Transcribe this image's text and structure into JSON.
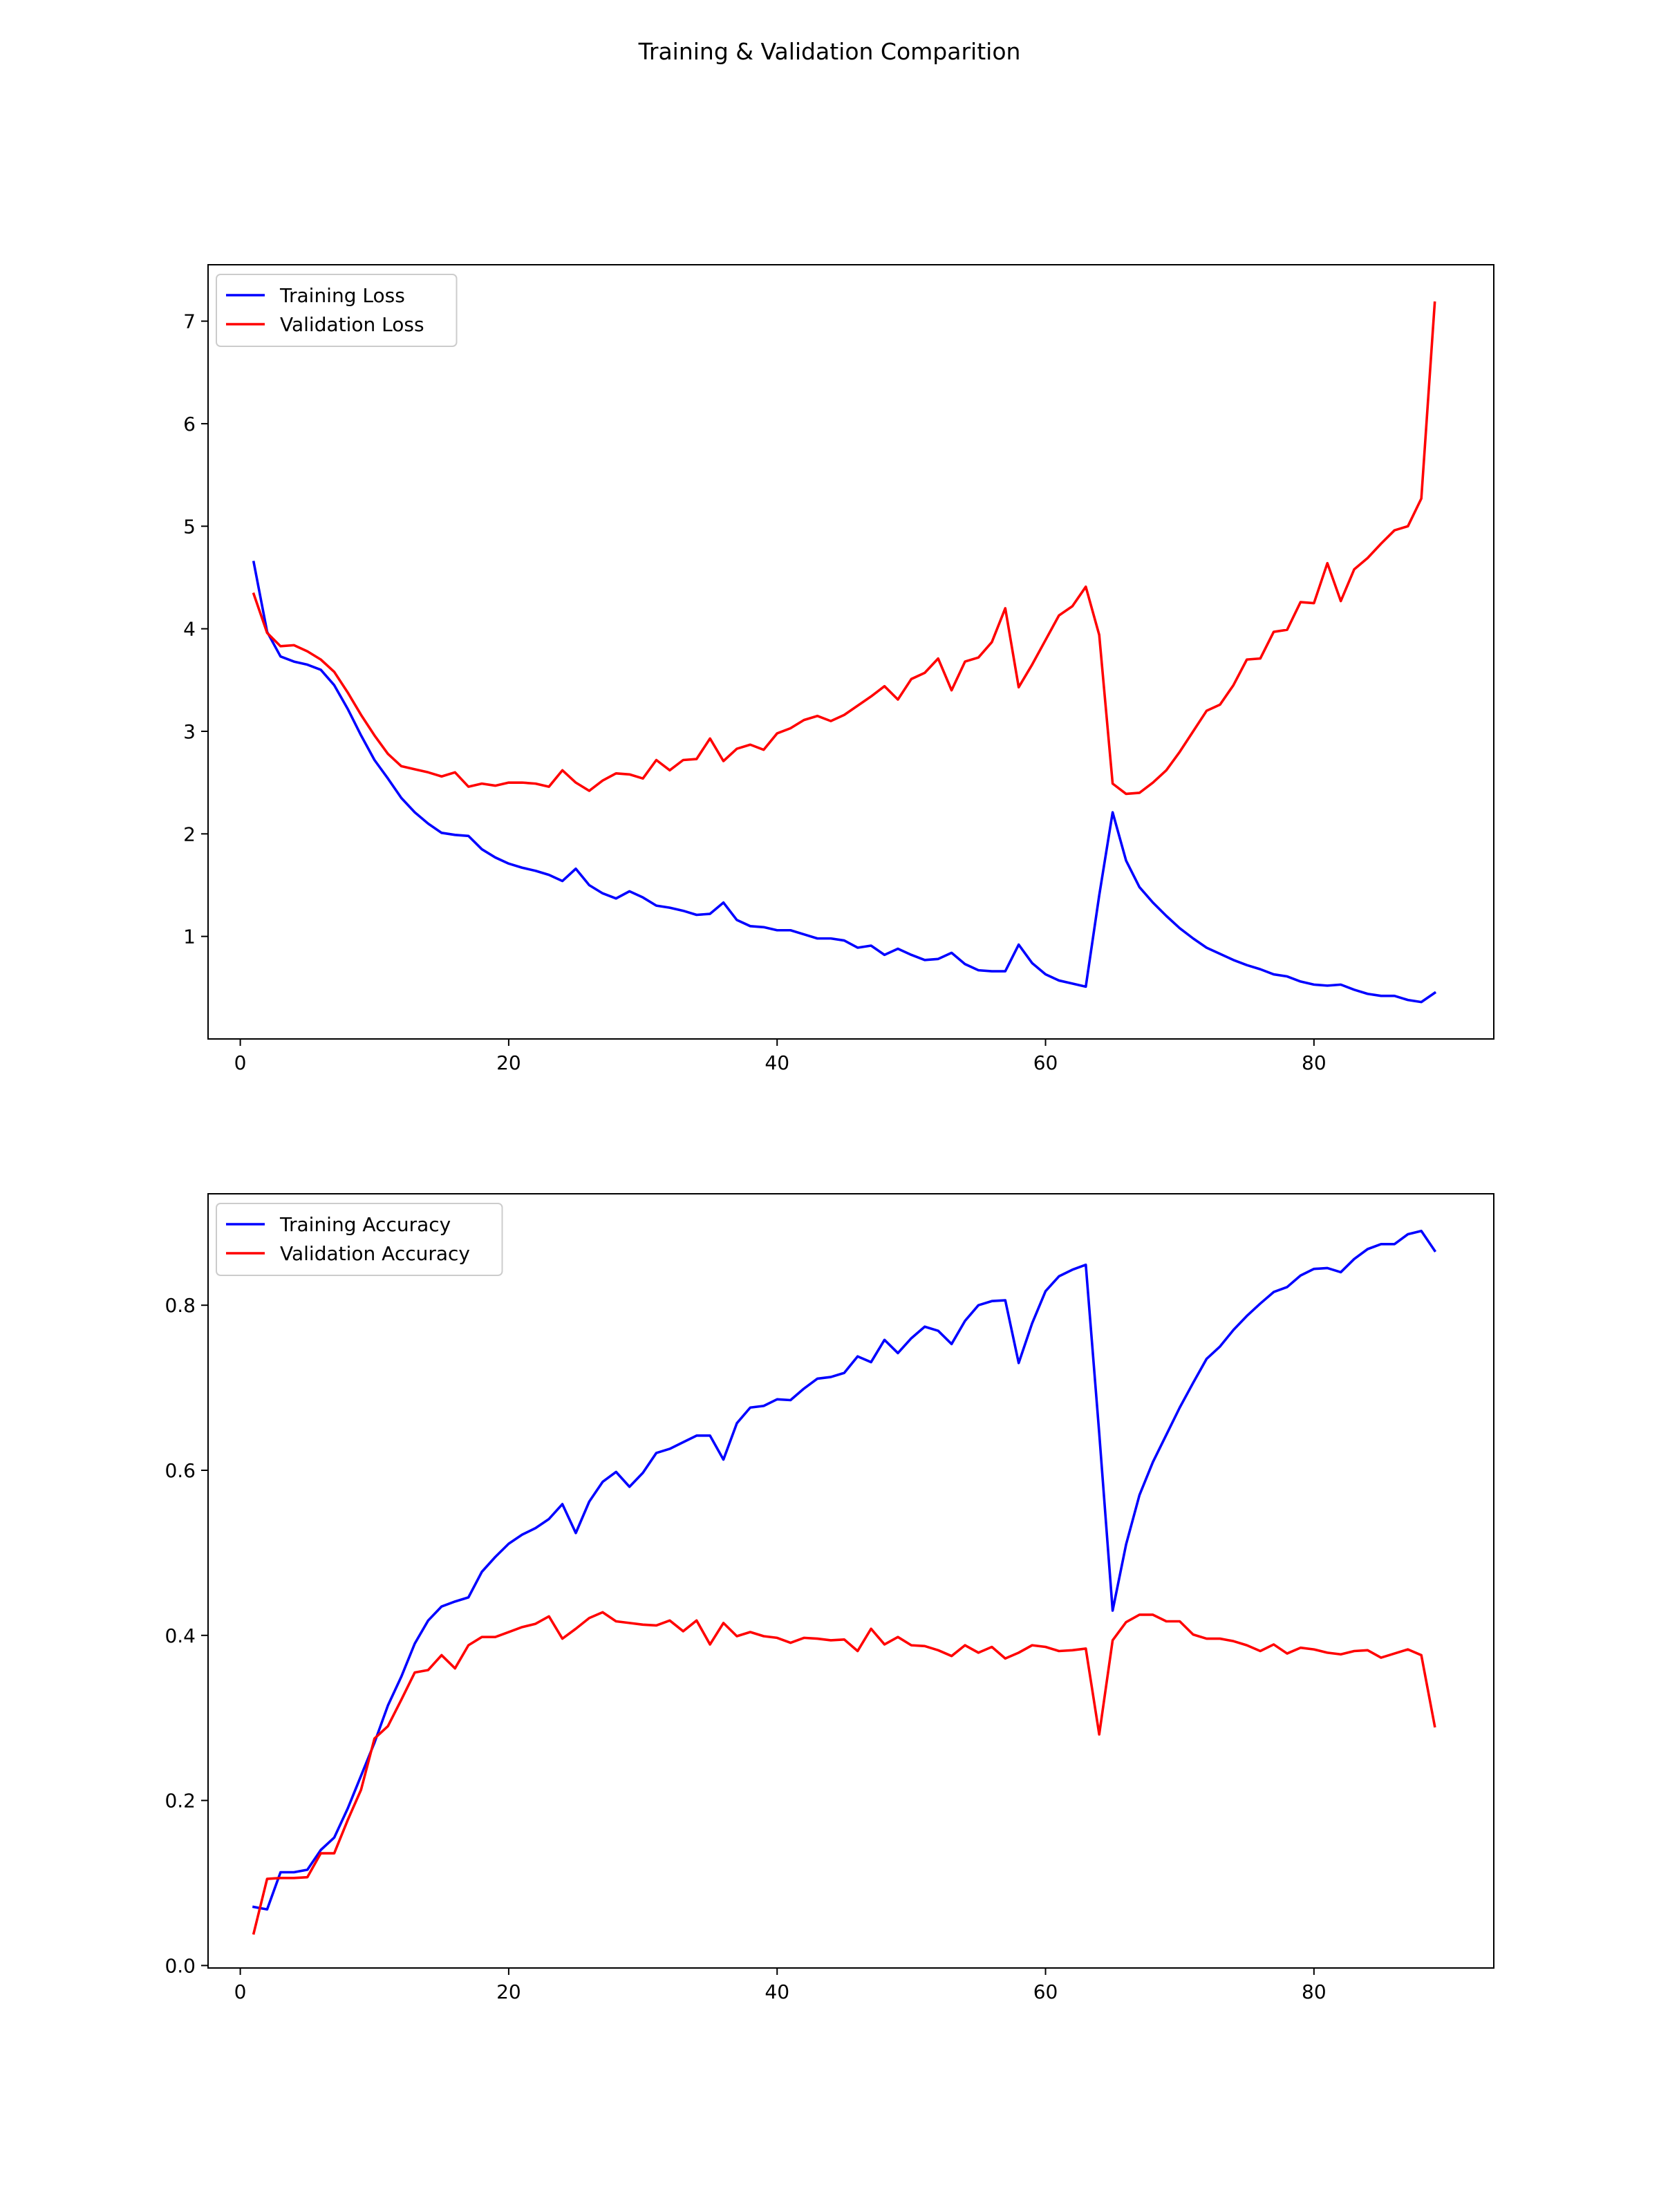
{
  "figure": {
    "title": "Training & Validation Comparition"
  },
  "chart_data": [
    {
      "type": "line",
      "title": "",
      "xlabel": "",
      "ylabel": "",
      "xlim": [
        -2.4,
        93.4
      ],
      "ylim": [
        0.0,
        7.55
      ],
      "xticks": [
        0,
        20,
        40,
        60,
        80
      ],
      "yticks": [
        1,
        2,
        3,
        4,
        5,
        6,
        7
      ],
      "ytick_decimals": 0,
      "grid": false,
      "legend_position": "top-left",
      "series": [
        {
          "name": "Training Loss",
          "color": "#0000ff",
          "values": [
            4.65,
            3.97,
            3.73,
            3.68,
            3.65,
            3.6,
            3.45,
            3.22,
            2.96,
            2.72,
            2.54,
            2.35,
            2.21,
            2.1,
            2.01,
            1.99,
            1.98,
            1.85,
            1.77,
            1.71,
            1.67,
            1.64,
            1.6,
            1.54,
            1.66,
            1.5,
            1.42,
            1.37,
            1.44,
            1.38,
            1.3,
            1.28,
            1.25,
            1.21,
            1.22,
            1.33,
            1.16,
            1.1,
            1.09,
            1.06,
            1.06,
            1.02,
            0.98,
            0.98,
            0.96,
            0.89,
            0.91,
            0.82,
            0.88,
            0.82,
            0.77,
            0.78,
            0.84,
            0.73,
            0.67,
            0.66,
            0.66,
            0.92,
            0.74,
            0.63,
            0.57,
            0.54,
            0.51,
            1.4,
            2.21,
            1.74,
            1.48,
            1.33,
            1.2,
            1.08,
            0.98,
            0.89,
            0.83,
            0.77,
            0.72,
            0.68,
            0.63,
            0.61,
            0.56,
            0.53,
            0.52,
            0.53,
            0.48,
            0.44,
            0.42,
            0.42,
            0.38,
            0.36,
            0.45
          ]
        },
        {
          "name": "Validation Loss",
          "color": "#ff0000",
          "values": [
            4.34,
            3.96,
            3.83,
            3.84,
            3.78,
            3.7,
            3.58,
            3.38,
            3.16,
            2.96,
            2.78,
            2.66,
            2.63,
            2.6,
            2.56,
            2.6,
            2.46,
            2.49,
            2.47,
            2.5,
            2.5,
            2.49,
            2.46,
            2.62,
            2.5,
            2.42,
            2.52,
            2.59,
            2.58,
            2.54,
            2.72,
            2.62,
            2.72,
            2.73,
            2.93,
            2.71,
            2.83,
            2.87,
            2.82,
            2.98,
            3.03,
            3.11,
            3.15,
            3.1,
            3.16,
            3.25,
            3.34,
            3.44,
            3.31,
            3.51,
            3.57,
            3.71,
            3.4,
            3.68,
            3.72,
            3.87,
            4.2,
            3.43,
            3.65,
            3.89,
            4.13,
            4.22,
            4.41,
            3.94,
            2.49,
            2.39,
            2.4,
            2.5,
            2.62,
            2.8,
            3.0,
            3.2,
            3.26,
            3.45,
            3.7,
            3.71,
            3.97,
            3.99,
            4.26,
            4.25,
            4.64,
            4.27,
            4.58,
            4.69,
            4.83,
            4.96,
            5.0,
            5.27,
            7.18
          ]
        }
      ]
    },
    {
      "type": "line",
      "title": "",
      "xlabel": "",
      "ylabel": "",
      "xlim": [
        -2.4,
        93.4
      ],
      "ylim": [
        -0.003,
        0.935
      ],
      "xticks": [
        0,
        20,
        40,
        60,
        80
      ],
      "yticks": [
        0.0,
        0.2,
        0.4,
        0.6,
        0.8
      ],
      "ytick_decimals": 1,
      "grid": false,
      "legend_position": "top-left",
      "series": [
        {
          "name": "Training Accuracy",
          "color": "#0000ff",
          "values": [
            0.071,
            0.068,
            0.113,
            0.113,
            0.116,
            0.14,
            0.155,
            0.19,
            0.23,
            0.27,
            0.315,
            0.35,
            0.39,
            0.418,
            0.435,
            0.441,
            0.446,
            0.477,
            0.495,
            0.511,
            0.522,
            0.53,
            0.541,
            0.559,
            0.524,
            0.562,
            0.586,
            0.598,
            0.58,
            0.597,
            0.621,
            0.626,
            0.634,
            0.642,
            0.642,
            0.613,
            0.657,
            0.676,
            0.678,
            0.686,
            0.685,
            0.699,
            0.711,
            0.713,
            0.718,
            0.738,
            0.731,
            0.758,
            0.742,
            0.76,
            0.774,
            0.769,
            0.753,
            0.781,
            0.8,
            0.805,
            0.806,
            0.73,
            0.778,
            0.817,
            0.835,
            0.843,
            0.849,
            0.645,
            0.43,
            0.51,
            0.57,
            0.61,
            0.643,
            0.676,
            0.706,
            0.735,
            0.75,
            0.77,
            0.787,
            0.802,
            0.816,
            0.822,
            0.836,
            0.844,
            0.845,
            0.84,
            0.856,
            0.868,
            0.874,
            0.874,
            0.886,
            0.89,
            0.866
          ]
        },
        {
          "name": "Validation Accuracy",
          "color": "#ff0000",
          "values": [
            0.039,
            0.105,
            0.106,
            0.106,
            0.107,
            0.136,
            0.136,
            0.176,
            0.213,
            0.275,
            0.29,
            0.322,
            0.355,
            0.358,
            0.376,
            0.36,
            0.388,
            0.398,
            0.398,
            0.404,
            0.41,
            0.414,
            0.423,
            0.396,
            0.408,
            0.421,
            0.428,
            0.417,
            0.415,
            0.413,
            0.412,
            0.418,
            0.405,
            0.418,
            0.389,
            0.415,
            0.399,
            0.404,
            0.399,
            0.397,
            0.391,
            0.397,
            0.396,
            0.394,
            0.395,
            0.381,
            0.408,
            0.389,
            0.398,
            0.388,
            0.387,
            0.382,
            0.375,
            0.388,
            0.379,
            0.386,
            0.372,
            0.379,
            0.388,
            0.386,
            0.381,
            0.382,
            0.384,
            0.28,
            0.394,
            0.416,
            0.425,
            0.425,
            0.417,
            0.417,
            0.401,
            0.396,
            0.396,
            0.393,
            0.388,
            0.381,
            0.389,
            0.378,
            0.385,
            0.383,
            0.379,
            0.377,
            0.381,
            0.382,
            0.373,
            0.378,
            0.383,
            0.376,
            0.29
          ]
        }
      ]
    }
  ]
}
